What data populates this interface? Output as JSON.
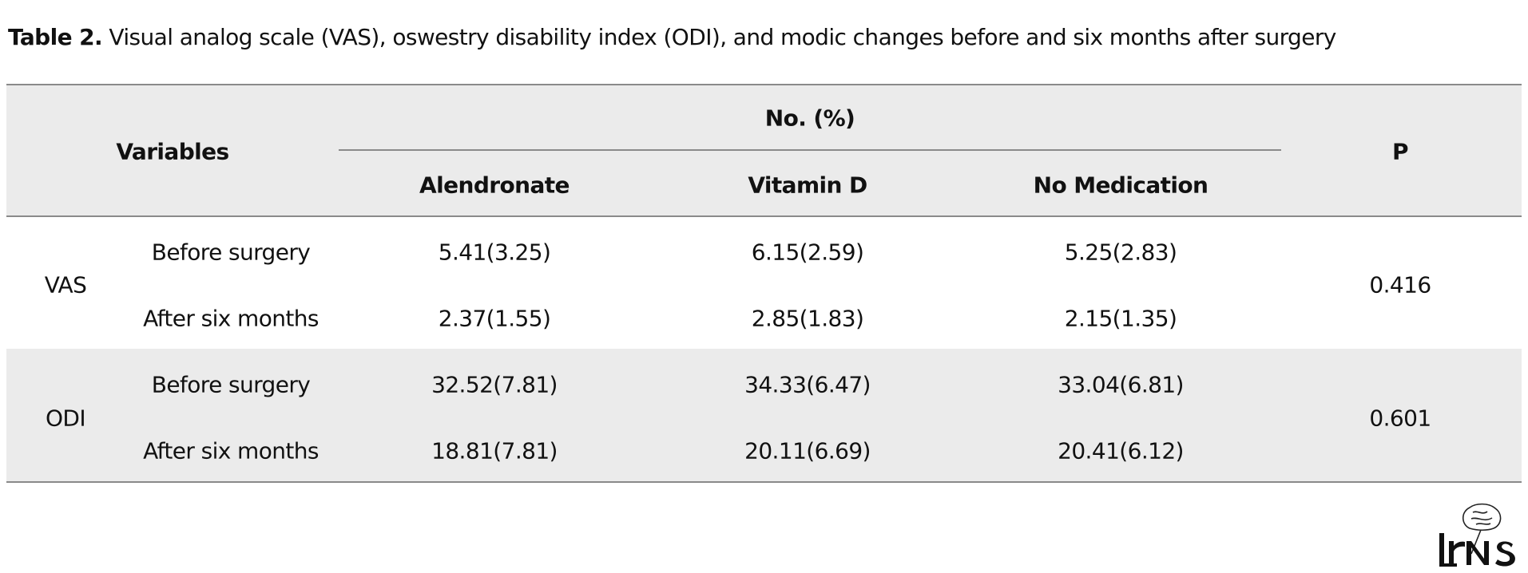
{
  "caption": {
    "label": "Table 2.",
    "text": "Visual analog scale (VAS), oswestry disability index (ODI), and modic changes before and six months after surgery"
  },
  "table": {
    "header": {
      "variables": "Variables",
      "group": "No. (%)",
      "columns": [
        "Alendronate",
        "Vitamin D",
        "No Medication"
      ],
      "p": "P"
    },
    "groups": [
      {
        "name": "VAS",
        "p": "0.416",
        "rows": [
          {
            "label": "Before surgery",
            "values": [
              "5.41(3.25)",
              "6.15(2.59)",
              "5.25(2.83)"
            ]
          },
          {
            "label": "After six months",
            "values": [
              "2.37(1.55)",
              "2.85(1.83)",
              "2.15(1.35)"
            ]
          }
        ]
      },
      {
        "name": "ODI",
        "p": "0.601",
        "rows": [
          {
            "label": "Before surgery",
            "values": [
              "32.52(7.81)",
              "34.33(6.47)",
              "33.04(6.81)"
            ]
          },
          {
            "label": "After six months",
            "values": [
              "18.81(7.81)",
              "20.11(6.69)",
              "20.41(6.12)"
            ]
          }
        ]
      }
    ]
  },
  "logo": {
    "text": "IrNS"
  }
}
